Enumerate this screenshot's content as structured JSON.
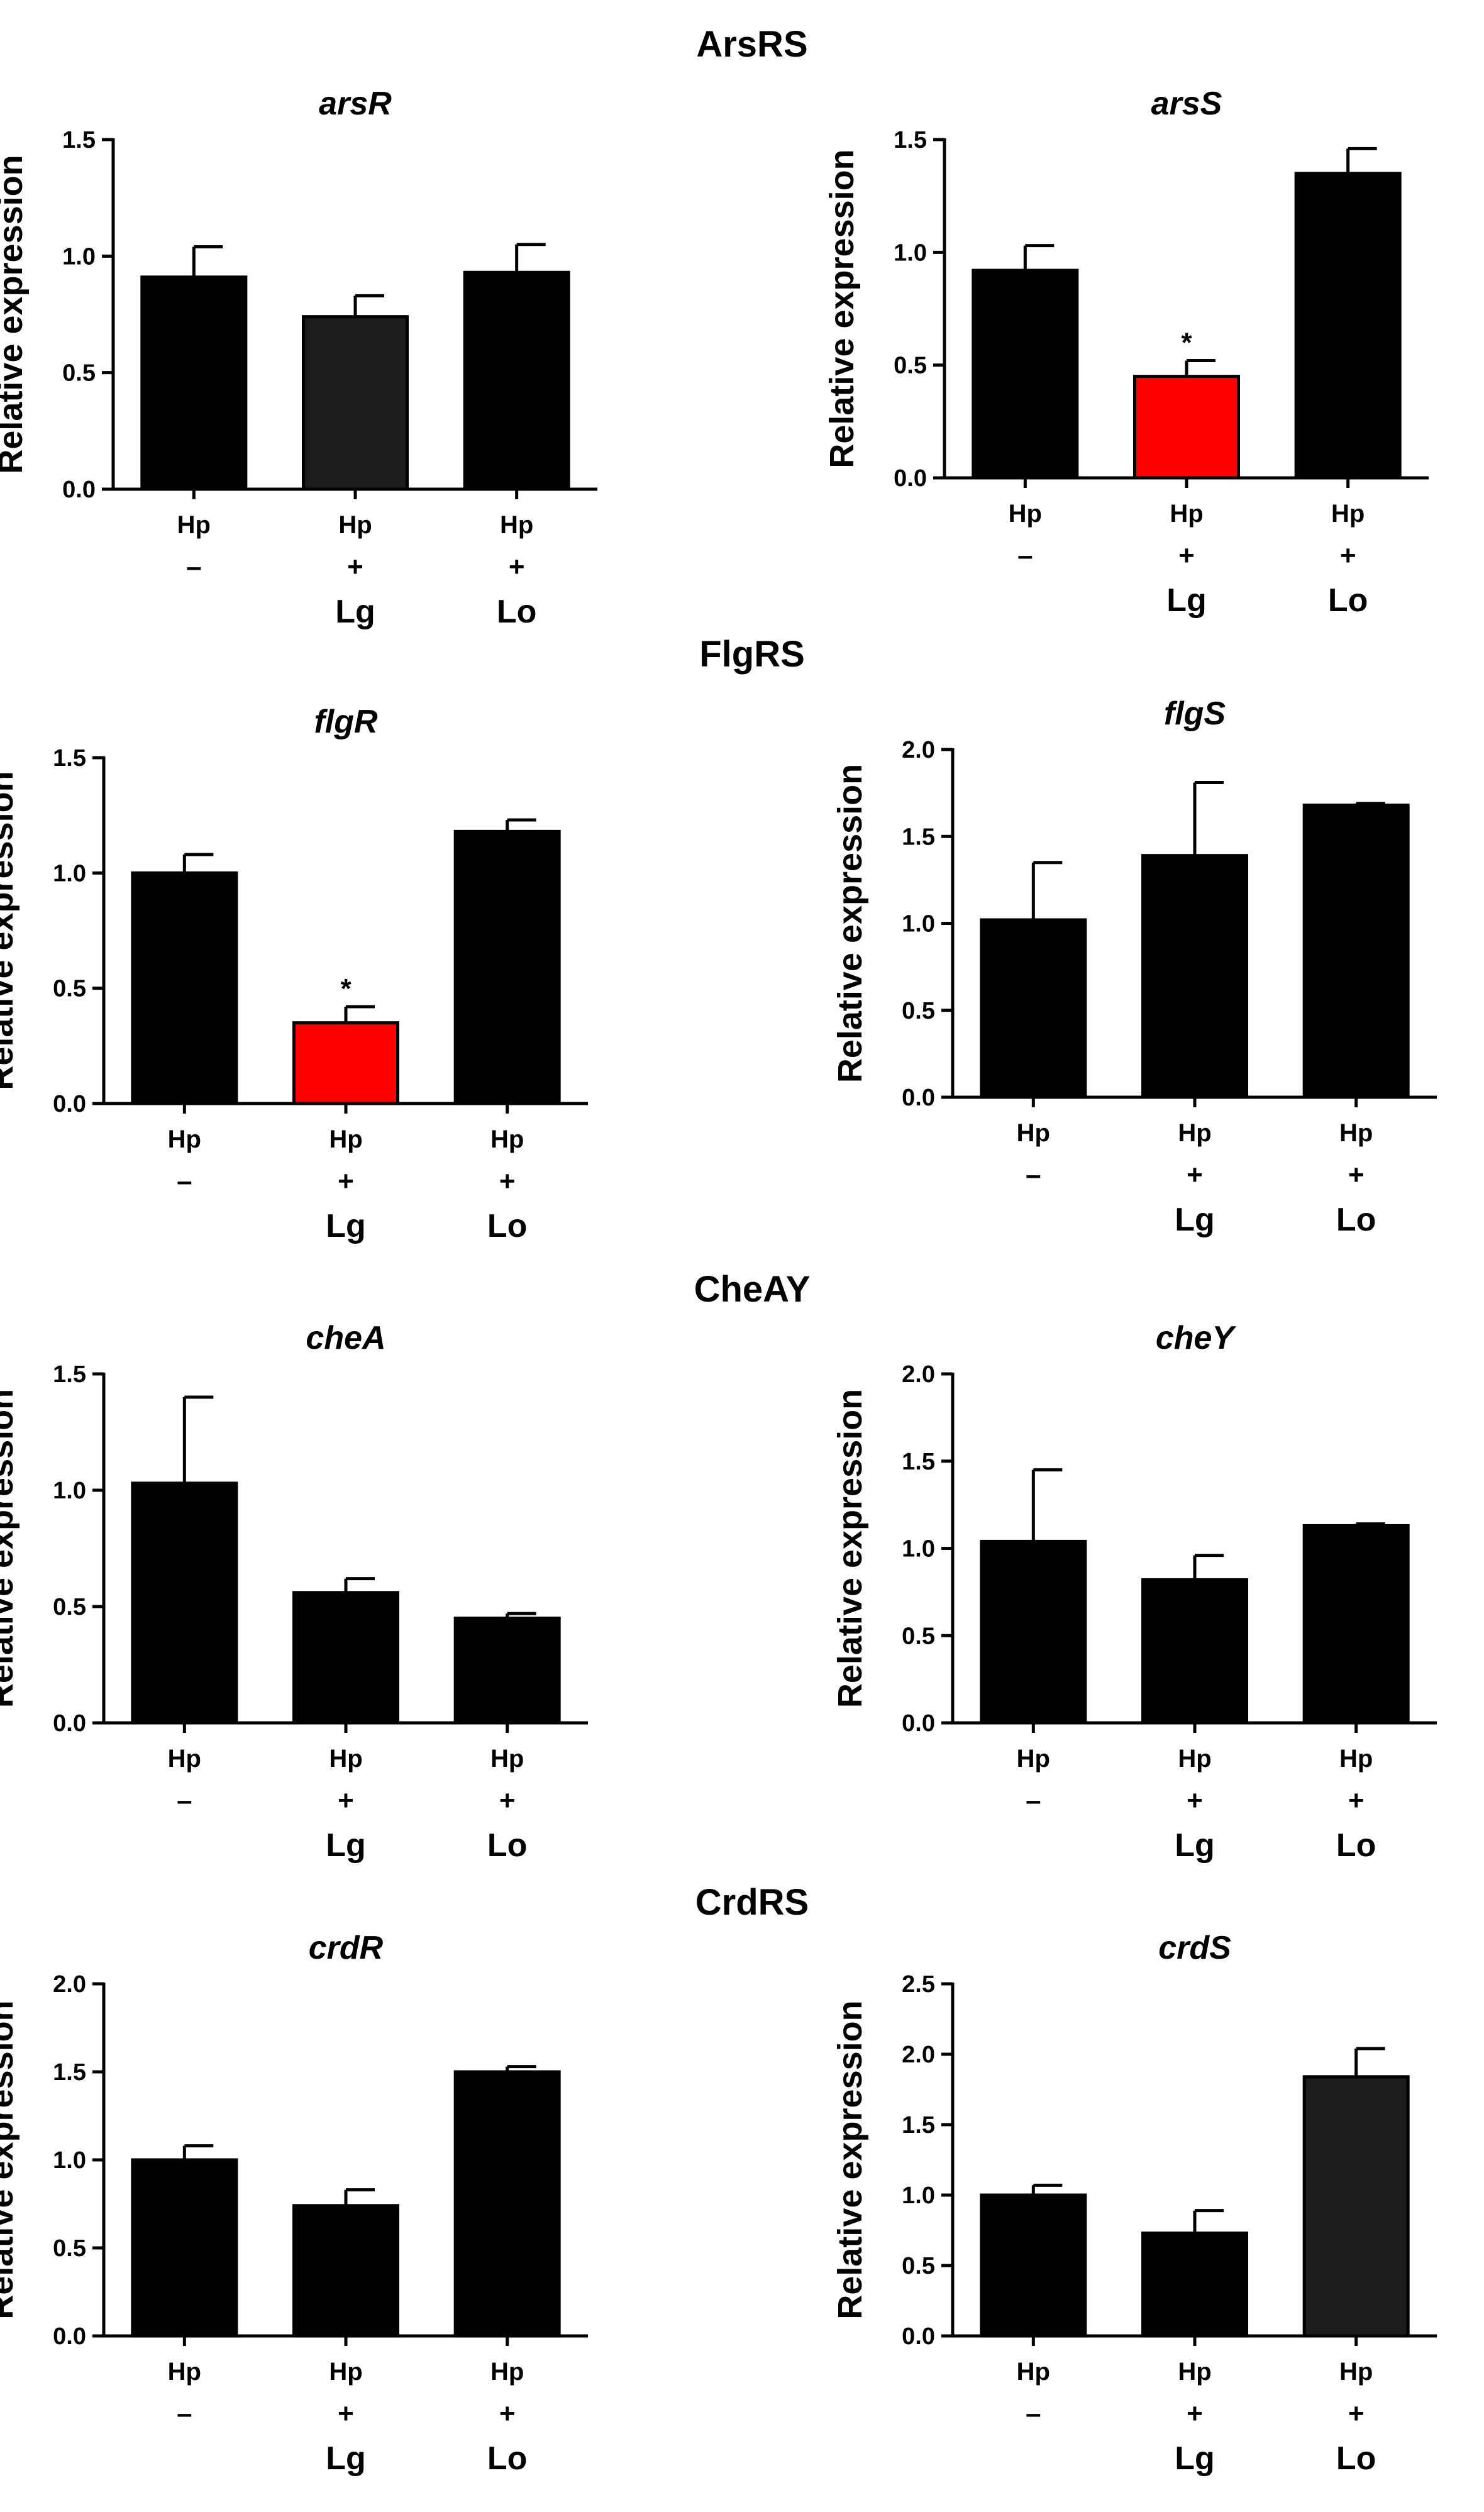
{
  "sections": [
    "ArsRS",
    "FlgRS",
    "CheAY",
    "CrdRS"
  ],
  "colors": {
    "default_bar": "#000000",
    "dark_bar": "#1c1c1c",
    "highlight_bar": "#ff0000"
  },
  "chart_data": [
    {
      "type": "bar",
      "section": "ArsRS",
      "title": "arsR",
      "ylabel": "Relative expression",
      "ylim": [
        0,
        1.5
      ],
      "yticks": [
        "0.0",
        "0.5",
        "1.0",
        "1.5"
      ],
      "categories": [
        [
          "Hp",
          "–",
          ""
        ],
        [
          "Hp",
          "+",
          "Lg"
        ],
        [
          "Hp",
          "+",
          "Lo"
        ]
      ],
      "values": [
        0.91,
        0.74,
        0.93
      ],
      "errors": [
        0.13,
        0.09,
        0.12
      ],
      "significance": [
        "",
        "",
        ""
      ],
      "bar_colors": [
        "default",
        "dark",
        "default"
      ]
    },
    {
      "type": "bar",
      "section": "ArsRS",
      "title": "arsS",
      "ylabel": "Relative expression",
      "ylim": [
        0,
        1.5
      ],
      "yticks": [
        "0.0",
        "0.5",
        "1.0",
        "1.5"
      ],
      "categories": [
        [
          "Hp",
          "–",
          ""
        ],
        [
          "Hp",
          "+",
          "Lg"
        ],
        [
          "Hp",
          "+",
          "Lo"
        ]
      ],
      "values": [
        0.92,
        0.45,
        1.35
      ],
      "errors": [
        0.11,
        0.07,
        0.11
      ],
      "significance": [
        "",
        "*",
        ""
      ],
      "bar_colors": [
        "default",
        "highlight",
        "default"
      ]
    },
    {
      "type": "bar",
      "section": "FlgRS",
      "title": "flgR",
      "ylabel": "Relative expression",
      "ylim": [
        0,
        1.5
      ],
      "yticks": [
        "0.0",
        "0.5",
        "1.0",
        "1.5"
      ],
      "categories": [
        [
          "Hp",
          "–",
          ""
        ],
        [
          "Hp",
          "+",
          "Lg"
        ],
        [
          "Hp",
          "+",
          "Lo"
        ]
      ],
      "values": [
        1.0,
        0.35,
        1.18
      ],
      "errors": [
        0.08,
        0.07,
        0.05
      ],
      "significance": [
        "",
        "*",
        ""
      ],
      "bar_colors": [
        "default",
        "highlight",
        "default"
      ]
    },
    {
      "type": "bar",
      "section": "FlgRS",
      "title": "flgS",
      "ylabel": "Relative expression",
      "ylim": [
        0,
        2.0
      ],
      "yticks": [
        "0.0",
        "0.5",
        "1.0",
        "1.5",
        "2.0"
      ],
      "categories": [
        [
          "Hp",
          "–",
          ""
        ],
        [
          "Hp",
          "+",
          "Lg"
        ],
        [
          "Hp",
          "+",
          "Lo"
        ]
      ],
      "values": [
        1.02,
        1.39,
        1.68
      ],
      "errors": [
        0.33,
        0.42,
        0.01
      ],
      "significance": [
        "",
        "",
        ""
      ],
      "bar_colors": [
        "default",
        "default",
        "default"
      ]
    },
    {
      "type": "bar",
      "section": "CheAY",
      "title": "cheA",
      "ylabel": "Relative expression",
      "ylim": [
        0,
        1.5
      ],
      "yticks": [
        "0.0",
        "0.5",
        "1.0",
        "1.5"
      ],
      "categories": [
        [
          "Hp",
          "–",
          ""
        ],
        [
          "Hp",
          "+",
          "Lg"
        ],
        [
          "Hp",
          "+",
          "Lo"
        ]
      ],
      "values": [
        1.03,
        0.56,
        0.45
      ],
      "errors": [
        0.37,
        0.06,
        0.02
      ],
      "significance": [
        "",
        "",
        ""
      ],
      "bar_colors": [
        "default",
        "default",
        "default"
      ]
    },
    {
      "type": "bar",
      "section": "CheAY",
      "title": "cheY",
      "ylabel": "Relative expression",
      "ylim": [
        0,
        2.0
      ],
      "yticks": [
        "0.0",
        "0.5",
        "1.0",
        "1.5",
        "2.0"
      ],
      "categories": [
        [
          "Hp",
          "–",
          ""
        ],
        [
          "Hp",
          "+",
          "Lg"
        ],
        [
          "Hp",
          "+",
          "Lo"
        ]
      ],
      "values": [
        1.04,
        0.82,
        1.13
      ],
      "errors": [
        0.41,
        0.14,
        0.01
      ],
      "significance": [
        "",
        "",
        ""
      ],
      "bar_colors": [
        "default",
        "default",
        "default"
      ]
    },
    {
      "type": "bar",
      "section": "CrdRS",
      "title": "crdR",
      "ylabel": "Relative expression",
      "ylim": [
        0,
        2.0
      ],
      "yticks": [
        "0.0",
        "0.5",
        "1.0",
        "1.5",
        "2.0"
      ],
      "categories": [
        [
          "Hp",
          "–",
          ""
        ],
        [
          "Hp",
          "+",
          "Lg"
        ],
        [
          "Hp",
          "+",
          "Lo"
        ]
      ],
      "values": [
        1.0,
        0.74,
        1.5
      ],
      "errors": [
        0.08,
        0.09,
        0.03
      ],
      "significance": [
        "",
        "",
        ""
      ],
      "bar_colors": [
        "default",
        "default",
        "default"
      ]
    },
    {
      "type": "bar",
      "section": "CrdRS",
      "title": "crdS",
      "ylabel": "Relative expression",
      "ylim": [
        0,
        2.5
      ],
      "yticks": [
        "0.0",
        "0.5",
        "1.0",
        "1.5",
        "2.0",
        "2.5"
      ],
      "categories": [
        [
          "Hp",
          "–",
          ""
        ],
        [
          "Hp",
          "+",
          "Lg"
        ],
        [
          "Hp",
          "+",
          "Lo"
        ]
      ],
      "values": [
        1.0,
        0.73,
        1.84
      ],
      "errors": [
        0.07,
        0.16,
        0.2
      ],
      "significance": [
        "",
        "",
        ""
      ],
      "bar_colors": [
        "default",
        "default",
        "dark"
      ]
    }
  ]
}
